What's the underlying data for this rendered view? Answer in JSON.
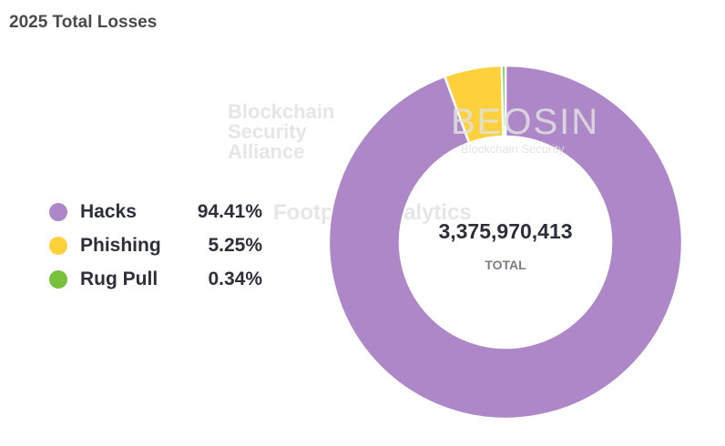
{
  "chart_data": {
    "type": "pie",
    "title": "2025 Total Losses",
    "categories": [
      "Hacks",
      "Phishing",
      "Rug Pull"
    ],
    "values": [
      94.41,
      5.25,
      0.34
    ],
    "value_labels": [
      "94.41%",
      "5.25%",
      "0.34%"
    ],
    "colors": [
      "#ae87c8",
      "#fdd13b",
      "#79c13a"
    ],
    "donut": true,
    "center_value": "3,375,970,413",
    "center_label": "TOTAL",
    "legend_position": "left"
  },
  "watermarks": [
    "Blockchain Security Alliance",
    "BEOSIN",
    "Blockchain Security",
    "Footprint Analytics"
  ]
}
